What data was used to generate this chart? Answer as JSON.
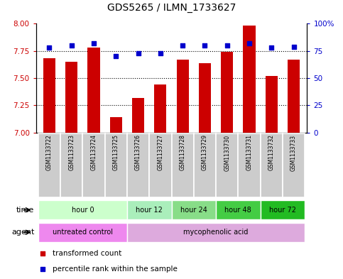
{
  "title": "GDS5265 / ILMN_1733627",
  "samples": [
    "GSM1133722",
    "GSM1133723",
    "GSM1133724",
    "GSM1133725",
    "GSM1133726",
    "GSM1133727",
    "GSM1133728",
    "GSM1133729",
    "GSM1133730",
    "GSM1133731",
    "GSM1133732",
    "GSM1133733"
  ],
  "transformed_count": [
    7.68,
    7.65,
    7.78,
    7.14,
    7.32,
    7.44,
    7.67,
    7.64,
    7.74,
    7.98,
    7.52,
    7.67
  ],
  "percentile_rank": [
    78,
    80,
    82,
    70,
    73,
    73,
    80,
    80,
    80,
    82,
    78,
    79
  ],
  "bar_color": "#cc0000",
  "dot_color": "#0000cc",
  "ylim_left": [
    7.0,
    8.0
  ],
  "ylim_right": [
    0,
    100
  ],
  "yticks_left": [
    7.0,
    7.25,
    7.5,
    7.75,
    8.0
  ],
  "yticks_right": [
    0,
    25,
    50,
    75,
    100
  ],
  "hlines": [
    7.25,
    7.5,
    7.75
  ],
  "time_groups": [
    {
      "label": "hour 0",
      "start": 0,
      "end": 4,
      "color": "#ccffcc"
    },
    {
      "label": "hour 12",
      "start": 4,
      "end": 6,
      "color": "#aaeebb"
    },
    {
      "label": "hour 24",
      "start": 6,
      "end": 8,
      "color": "#88dd88"
    },
    {
      "label": "hour 48",
      "start": 8,
      "end": 10,
      "color": "#44cc44"
    },
    {
      "label": "hour 72",
      "start": 10,
      "end": 12,
      "color": "#22bb22"
    }
  ],
  "agent_groups": [
    {
      "label": "untreated control",
      "start": 0,
      "end": 4,
      "color": "#ee88ee"
    },
    {
      "label": "mycophenolic acid",
      "start": 4,
      "end": 12,
      "color": "#ddaadd"
    }
  ],
  "sample_box_color": "#cccccc",
  "sample_box_edge": "#888888",
  "ylabel_left_color": "#cc0000",
  "ylabel_right_color": "#0000cc",
  "legend_colors": [
    "#cc0000",
    "#0000cc"
  ],
  "legend_labels": [
    "transformed count",
    "percentile rank within the sample"
  ]
}
